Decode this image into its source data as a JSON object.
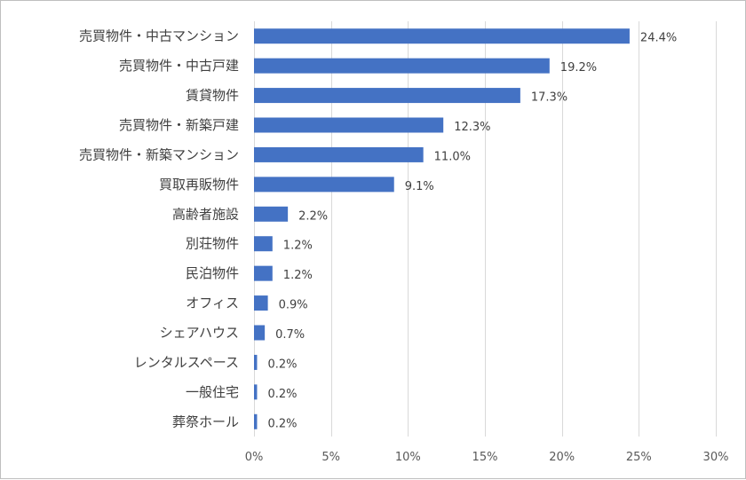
{
  "chart_data": {
    "type": "bar",
    "orientation": "horizontal",
    "categories": [
      "売買物件・中古マンション",
      "売買物件・中古戸建",
      "賃貸物件",
      "売買物件・新築戸建",
      "売買物件・新築マンション",
      "買取再販物件",
      "高齢者施設",
      "別荘物件",
      "民泊物件",
      "オフィス",
      "シェアハウス",
      "レンタルスペース",
      "一般住宅",
      "葬祭ホール"
    ],
    "values": [
      24.4,
      19.2,
      17.3,
      12.3,
      11.0,
      9.1,
      2.2,
      1.2,
      1.2,
      0.9,
      0.7,
      0.2,
      0.2,
      0.2
    ],
    "value_labels": [
      "24.4%",
      "19.2%",
      "17.3%",
      "12.3%",
      "11.0%",
      "9.1%",
      "2.2%",
      "1.2%",
      "1.2%",
      "0.9%",
      "0.7%",
      "0.2%",
      "0.2%",
      "0.2%"
    ],
    "xlim": [
      0,
      30
    ],
    "xticks": [
      0,
      5,
      10,
      15,
      20,
      25,
      30
    ],
    "xtick_labels": [
      "0%",
      "5%",
      "10%",
      "15%",
      "20%",
      "25%",
      "30%"
    ],
    "grid": true,
    "bar_color": "#4472c4",
    "title": "",
    "xlabel": "",
    "ylabel": ""
  }
}
